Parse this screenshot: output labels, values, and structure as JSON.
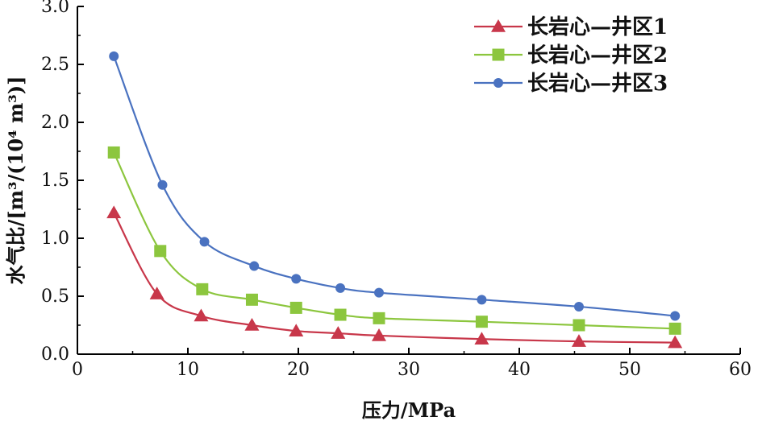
{
  "chart_data": {
    "type": "line",
    "xlabel": "压力/MPa",
    "ylabel": "水气比/[m³/(10⁴ m³)]",
    "xlim": [
      0,
      60
    ],
    "ylim": [
      0,
      3.0
    ],
    "x_ticks": [
      "0",
      "10",
      "20",
      "30",
      "40",
      "50",
      "60"
    ],
    "y_ticks": [
      "0.0",
      "0.5",
      "1.0",
      "1.5",
      "2.0",
      "2.5",
      "3.0"
    ],
    "grid": false,
    "legend_position": "top-right",
    "series": [
      {
        "name": "长岩心—井区1",
        "color": "#c8374a",
        "marker": "triangle",
        "x": [
          3.3,
          7.2,
          11.2,
          15.8,
          19.8,
          23.6,
          27.3,
          36.6,
          45.4,
          54.1
        ],
        "y": [
          1.22,
          0.52,
          0.33,
          0.25,
          0.2,
          0.18,
          0.16,
          0.13,
          0.11,
          0.1
        ]
      },
      {
        "name": "长岩心—井区2",
        "color": "#8cc63e",
        "marker": "square",
        "x": [
          3.3,
          7.5,
          11.3,
          15.8,
          19.8,
          23.8,
          27.3,
          36.6,
          45.4,
          54.1
        ],
        "y": [
          1.74,
          0.89,
          0.56,
          0.47,
          0.4,
          0.34,
          0.31,
          0.28,
          0.25,
          0.22
        ]
      },
      {
        "name": "长岩心—井区3",
        "color": "#4a72c0",
        "marker": "circle",
        "x": [
          3.3,
          7.7,
          11.5,
          16.0,
          19.8,
          23.8,
          27.3,
          36.6,
          45.4,
          54.1
        ],
        "y": [
          2.57,
          1.46,
          0.97,
          0.76,
          0.65,
          0.57,
          0.53,
          0.47,
          0.41,
          0.33
        ]
      }
    ]
  }
}
